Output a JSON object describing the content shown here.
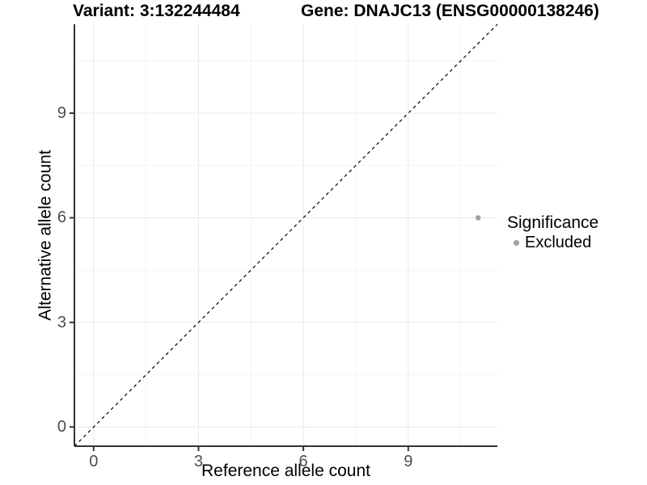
{
  "title": {
    "variant": "Variant: 3:132244484",
    "gene": "Gene: DNAJC13 (ENSG00000138246)"
  },
  "axes": {
    "x_label": "Reference allele count",
    "y_label": "Alternative allele count",
    "x_tick_labels": [
      "0",
      "3",
      "6",
      "9"
    ],
    "y_tick_labels": [
      "0",
      "3",
      "6",
      "9"
    ]
  },
  "legend": {
    "title": "Significance",
    "entries": [
      {
        "label": "Excluded",
        "color": "#a0a0a0"
      }
    ]
  },
  "colors": {
    "background": "#ffffff",
    "grid_major": "#e8e8e8",
    "grid_minor": "#f3f3f3",
    "axis_line": "#333333",
    "tick_label": "#4d4d4d",
    "identity_line": "#000000",
    "point": "#a0a0a0"
  },
  "chart_data": {
    "type": "scatter",
    "title": "Variant: 3:132244484    Gene: DNAJC13 (ENSG00000138246)",
    "xlabel": "Reference allele count",
    "ylabel": "Alternative allele count",
    "xlim": [
      -0.55,
      11.55
    ],
    "ylim": [
      -0.55,
      11.55
    ],
    "x_ticks": [
      0,
      3,
      6,
      9
    ],
    "y_ticks": [
      0,
      3,
      6,
      9
    ],
    "minor_gridlines": [
      1.5,
      4.5,
      7.5,
      10.5
    ],
    "grid": true,
    "identity_line": {
      "equation": "y = x",
      "style": "dashed",
      "color": "#000000"
    },
    "series": [
      {
        "name": "Excluded",
        "color": "#a0a0a0",
        "points": [
          {
            "x": 11,
            "y": 6
          }
        ]
      }
    ],
    "legend": {
      "title": "Significance",
      "position": "right",
      "entries": [
        "Excluded"
      ]
    }
  }
}
